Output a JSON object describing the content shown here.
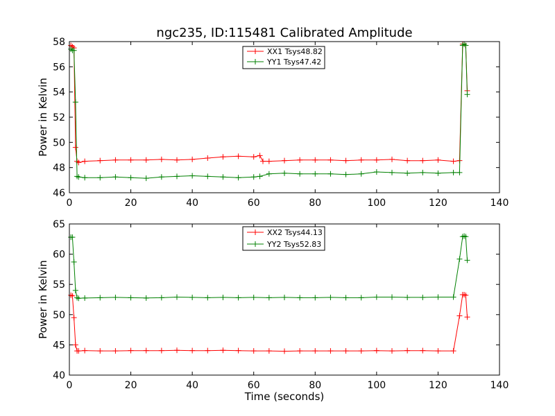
{
  "chart_data": [
    {
      "type": "line",
      "title": "ngc235, ID:115481 Calibrated Amplitude",
      "xlabel": "",
      "ylabel": "Power in Kelvin",
      "xlim": [
        0,
        140
      ],
      "ylim": [
        46,
        58
      ],
      "xticks": [
        "0",
        "20",
        "40",
        "60",
        "80",
        "100",
        "120",
        "140"
      ],
      "yticks": [
        "46",
        "48",
        "50",
        "52",
        "54",
        "56",
        "58"
      ],
      "grid": false,
      "legend_position": "top-center",
      "series": [
        {
          "name": "XX1 Tsys48.82",
          "color": "#ff0000",
          "x": [
            0.5,
            1,
            1.5,
            2,
            2.5,
            3,
            5,
            10,
            15,
            20,
            25,
            30,
            35,
            40,
            45,
            50,
            55,
            60,
            62,
            63,
            65,
            70,
            75,
            80,
            85,
            90,
            95,
            100,
            105,
            110,
            115,
            120,
            125,
            127,
            128,
            128.5,
            129,
            129.5
          ],
          "y": [
            57.7,
            57.6,
            57.5,
            49.6,
            48.5,
            48.4,
            48.5,
            48.55,
            48.6,
            48.6,
            48.6,
            48.65,
            48.6,
            48.65,
            48.75,
            48.85,
            48.9,
            48.85,
            48.95,
            48.5,
            48.5,
            48.55,
            48.6,
            48.6,
            48.6,
            48.55,
            48.6,
            48.6,
            48.65,
            48.55,
            48.55,
            48.6,
            48.5,
            48.55,
            57.8,
            57.8,
            57.7,
            54.1
          ]
        },
        {
          "name": "YY1 Tsys47.42",
          "color": "#008000",
          "x": [
            0.5,
            1,
            1.5,
            2,
            2.5,
            3,
            5,
            10,
            15,
            20,
            25,
            30,
            35,
            40,
            45,
            50,
            55,
            60,
            62,
            65,
            70,
            75,
            80,
            85,
            90,
            95,
            100,
            105,
            110,
            115,
            120,
            125,
            127,
            128,
            128.5,
            129,
            129.5
          ],
          "y": [
            57.4,
            57.3,
            57.3,
            53.2,
            47.3,
            47.25,
            47.2,
            47.2,
            47.25,
            47.2,
            47.15,
            47.25,
            47.3,
            47.35,
            47.3,
            47.25,
            47.2,
            47.25,
            47.3,
            47.5,
            47.55,
            47.5,
            47.5,
            47.5,
            47.45,
            47.5,
            47.65,
            47.6,
            47.55,
            47.6,
            47.55,
            47.6,
            47.6,
            57.7,
            57.8,
            57.7,
            53.8
          ]
        }
      ]
    },
    {
      "type": "line",
      "title": "",
      "xlabel": "Time (seconds)",
      "ylabel": "Power in Kelvin",
      "xlim": [
        0,
        140
      ],
      "ylim": [
        40,
        65
      ],
      "xticks": [
        "0",
        "20",
        "40",
        "60",
        "80",
        "100",
        "120",
        "140"
      ],
      "yticks": [
        "40",
        "45",
        "50",
        "55",
        "60",
        "65"
      ],
      "grid": false,
      "legend_position": "top-center",
      "series": [
        {
          "name": "XX2 Tsys44.13",
          "color": "#ff0000",
          "x": [
            0.5,
            1,
            1.5,
            2,
            2.5,
            3,
            5,
            10,
            15,
            20,
            25,
            30,
            35,
            40,
            45,
            50,
            55,
            60,
            65,
            70,
            75,
            80,
            85,
            90,
            95,
            100,
            105,
            110,
            115,
            120,
            125,
            127,
            128,
            128.5,
            129,
            129.5
          ],
          "y": [
            53.2,
            53.1,
            49.5,
            45.0,
            44.0,
            44.0,
            44.05,
            44.0,
            44.0,
            44.05,
            44.05,
            44.05,
            44.1,
            44.05,
            44.05,
            44.1,
            44.05,
            44.0,
            44.0,
            43.95,
            44.0,
            44.0,
            44.0,
            44.0,
            44.0,
            44.05,
            44.0,
            44.05,
            44.05,
            44.0,
            44.0,
            49.8,
            53.3,
            53.3,
            53.2,
            49.6
          ]
        },
        {
          "name": "YY2 Tsys52.83",
          "color": "#008000",
          "x": [
            0.5,
            1,
            1.5,
            2,
            2.5,
            3,
            5,
            10,
            15,
            20,
            25,
            30,
            35,
            40,
            45,
            50,
            55,
            60,
            65,
            70,
            75,
            80,
            85,
            90,
            95,
            100,
            105,
            110,
            115,
            120,
            125,
            127,
            128,
            128.5,
            129,
            129.5
          ],
          "y": [
            62.8,
            62.8,
            58.7,
            54.0,
            52.8,
            52.7,
            52.75,
            52.8,
            52.85,
            52.8,
            52.75,
            52.8,
            52.9,
            52.85,
            52.8,
            52.85,
            52.8,
            52.85,
            52.8,
            52.85,
            52.8,
            52.8,
            52.85,
            52.8,
            52.8,
            52.9,
            52.9,
            52.85,
            52.85,
            52.9,
            52.9,
            59.2,
            62.9,
            63.0,
            62.9,
            59.0
          ]
        }
      ]
    }
  ]
}
